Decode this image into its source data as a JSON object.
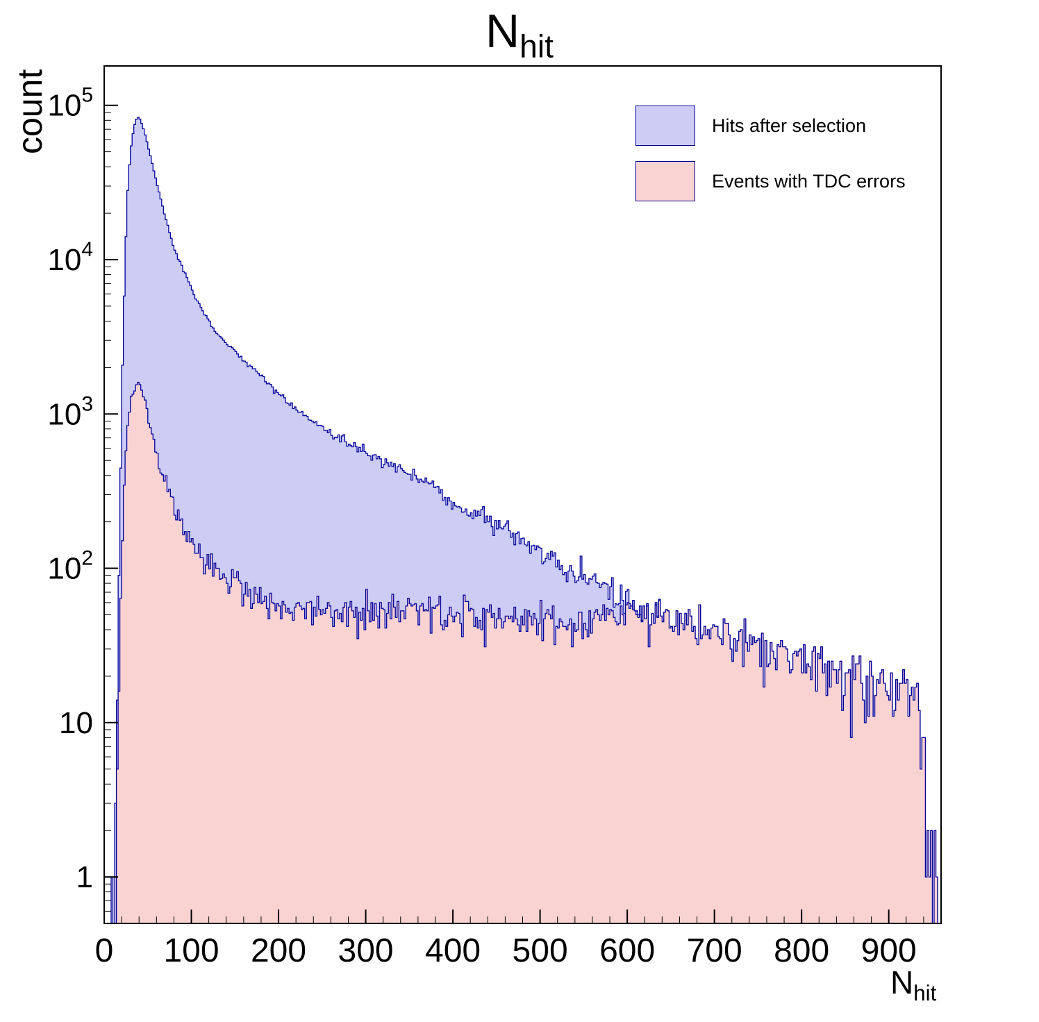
{
  "title": {
    "main": "N",
    "sub": "hit"
  },
  "y_axis": {
    "label": "count",
    "scale": "log",
    "min": 0.5,
    "max": 180000,
    "ticks": [
      {
        "value": 1,
        "base": "1",
        "exp": ""
      },
      {
        "value": 10,
        "base": "10",
        "exp": ""
      },
      {
        "value": 100,
        "base": "10",
        "exp": "2"
      },
      {
        "value": 1000,
        "base": "10",
        "exp": "3"
      },
      {
        "value": 10000,
        "base": "10",
        "exp": "4"
      },
      {
        "value": 100000,
        "base": "10",
        "exp": "5"
      }
    ]
  },
  "x_axis": {
    "label_main": "N",
    "label_sub": "hit",
    "min": 0,
    "max": 960,
    "major_tick_step": 100,
    "minor_tick_step": 20,
    "tick_labels": [
      "0",
      "100",
      "200",
      "300",
      "400",
      "500",
      "600",
      "700",
      "800",
      "900"
    ]
  },
  "legend": {
    "entries": [
      {
        "label": "Hits after selection"
      },
      {
        "label": "Events with TDC errors"
      }
    ]
  },
  "chart_data": {
    "type": "area",
    "subtype": "filled-step-histogram",
    "title": "N_hit",
    "xlabel": "N_hit",
    "ylabel": "count",
    "xlim": [
      0,
      960
    ],
    "ylim": [
      0.5,
      180000
    ],
    "yscale": "log",
    "grid": false,
    "legend_position": "top-right",
    "bin_width": 2,
    "noise_seed": 20240917,
    "merge_blend_start": 560,
    "merge_x": 640,
    "series": [
      {
        "name": "Hits after selection",
        "fill": "#ccccf5",
        "line": "#000099",
        "anchors": [
          [
            8,
            0.6
          ],
          [
            12,
            1.2
          ],
          [
            15,
            15
          ],
          [
            18,
            200
          ],
          [
            21,
            2000
          ],
          [
            24,
            10000
          ],
          [
            27,
            28000
          ],
          [
            30,
            50000
          ],
          [
            34,
            72000
          ],
          [
            38,
            85000
          ],
          [
            42,
            80000
          ],
          [
            46,
            68000
          ],
          [
            50,
            55000
          ],
          [
            55,
            42000
          ],
          [
            60,
            32000
          ],
          [
            70,
            19000
          ],
          [
            80,
            12000
          ],
          [
            90,
            8800
          ],
          [
            100,
            6500
          ],
          [
            110,
            5000
          ],
          [
            120,
            4000
          ],
          [
            130,
            3300
          ],
          [
            140,
            2850
          ],
          [
            150,
            2570
          ],
          [
            160,
            2250
          ],
          [
            170,
            2000
          ],
          [
            180,
            1750
          ],
          [
            190,
            1550
          ],
          [
            200,
            1350
          ],
          [
            220,
            1100
          ],
          [
            240,
            900
          ],
          [
            260,
            750
          ],
          [
            280,
            650
          ],
          [
            300,
            570
          ],
          [
            320,
            500
          ],
          [
            340,
            440
          ],
          [
            360,
            390
          ],
          [
            380,
            330
          ],
          [
            400,
            260
          ],
          [
            420,
            230
          ],
          [
            440,
            205
          ],
          [
            460,
            180
          ],
          [
            480,
            150
          ],
          [
            500,
            125
          ],
          [
            520,
            105
          ],
          [
            540,
            95
          ],
          [
            560,
            85
          ],
          [
            580,
            72
          ],
          [
            600,
            64
          ],
          [
            620,
            56
          ],
          [
            640,
            50
          ],
          [
            660,
            46
          ],
          [
            680,
            42
          ],
          [
            700,
            39
          ],
          [
            720,
            36
          ],
          [
            740,
            33
          ],
          [
            760,
            30
          ],
          [
            780,
            27
          ],
          [
            800,
            24
          ],
          [
            820,
            22
          ],
          [
            840,
            21
          ],
          [
            860,
            20
          ],
          [
            880,
            18
          ],
          [
            900,
            17
          ],
          [
            915,
            16
          ],
          [
            930,
            15
          ],
          [
            940,
            10
          ],
          [
            946,
            4
          ],
          [
            950,
            2
          ],
          [
            954,
            1
          ],
          [
            956,
            0
          ]
        ]
      },
      {
        "name": "Events with TDC errors",
        "fill": "#f9d2d2",
        "line": "#000099",
        "anchors": [
          [
            13,
            0.7
          ],
          [
            16,
            8
          ],
          [
            19,
            60
          ],
          [
            22,
            250
          ],
          [
            25,
            600
          ],
          [
            28,
            950
          ],
          [
            31,
            1250
          ],
          [
            35,
            1500
          ],
          [
            39,
            1600
          ],
          [
            43,
            1450
          ],
          [
            47,
            1200
          ],
          [
            52,
            900
          ],
          [
            58,
            640
          ],
          [
            65,
            440
          ],
          [
            75,
            300
          ],
          [
            85,
            220
          ],
          [
            95,
            170
          ],
          [
            105,
            140
          ],
          [
            115,
            115
          ],
          [
            125,
            100
          ],
          [
            135,
            92
          ],
          [
            145,
            84
          ],
          [
            155,
            77
          ],
          [
            165,
            71
          ],
          [
            175,
            67
          ],
          [
            185,
            63
          ],
          [
            200,
            58
          ],
          [
            220,
            54
          ],
          [
            240,
            51
          ],
          [
            260,
            52
          ],
          [
            280,
            53
          ],
          [
            300,
            54
          ],
          [
            320,
            53
          ],
          [
            340,
            52
          ],
          [
            360,
            51
          ],
          [
            380,
            50
          ],
          [
            400,
            50
          ],
          [
            420,
            49
          ],
          [
            440,
            49
          ],
          [
            460,
            48
          ],
          [
            480,
            47
          ],
          [
            500,
            46
          ],
          [
            520,
            45
          ],
          [
            540,
            44
          ],
          [
            560,
            44
          ],
          [
            580,
            43
          ],
          [
            640,
            43
          ]
        ]
      }
    ]
  }
}
